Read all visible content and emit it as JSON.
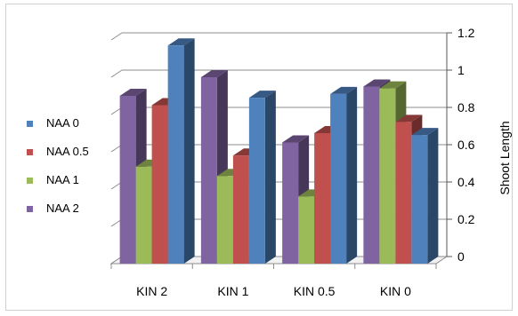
{
  "chart_data": {
    "type": "bar",
    "title": "",
    "xlabel": "",
    "ylabel": "Shoot Length",
    "categories": [
      "KIN 2",
      "KIN 1",
      "KIN 0.5",
      "KIN 0"
    ],
    "series": [
      {
        "name": "NAA 2",
        "color": "#8064a2",
        "values": [
          0.9,
          1.0,
          0.65,
          0.95
        ]
      },
      {
        "name": "NAA 1",
        "color": "#9bbb59",
        "values": [
          0.52,
          0.47,
          0.36,
          0.94
        ]
      },
      {
        "name": "NAA 0.5",
        "color": "#c0504d",
        "values": [
          0.85,
          0.58,
          0.7,
          0.76
        ]
      },
      {
        "name": "NAA 0",
        "color": "#4f81bd",
        "values": [
          1.17,
          0.89,
          0.91,
          0.69
        ]
      }
    ],
    "ylim": [
      0,
      1.2
    ],
    "yticks": [
      "0",
      "0.2",
      "0.4",
      "0.6",
      "0.8",
      "1",
      "1.2"
    ],
    "legend_order": [
      "NAA 0",
      "NAA 0.5",
      "NAA 1",
      "NAA 2"
    ],
    "legend_position": "left",
    "grid": true,
    "y_axis_side": "right"
  }
}
